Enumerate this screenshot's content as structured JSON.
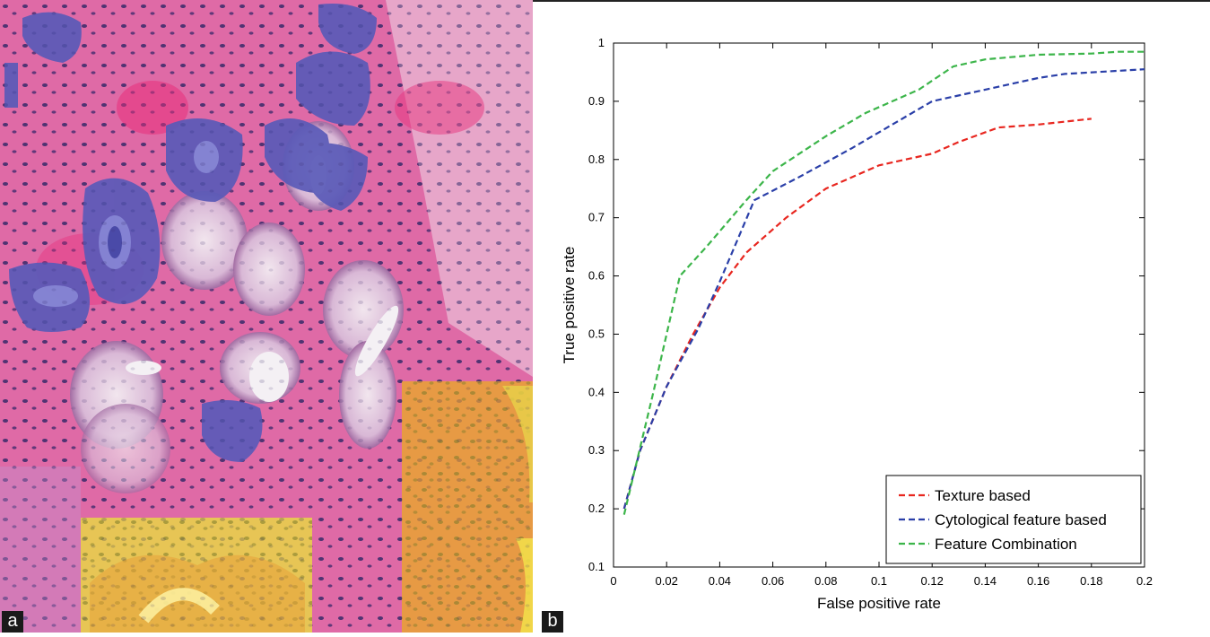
{
  "panels": {
    "a": {
      "label": "a"
    },
    "b": {
      "label": "b"
    }
  },
  "colors": {
    "tissue_pink": "#d95a9a",
    "nucleus_blue": "#5a5ab8",
    "highlight_yellow": "#e8d24a"
  },
  "chart_data": {
    "type": "line",
    "title": "",
    "xlabel": "False positive rate",
    "ylabel": "True positive rate",
    "xlim": [
      0,
      0.2
    ],
    "ylim": [
      0.1,
      1
    ],
    "xticks": [
      "0",
      "0.02",
      "0.04",
      "0.06",
      "0.08",
      "0.1",
      "0.12",
      "0.14",
      "0.16",
      "0.18",
      "0.2"
    ],
    "yticks": [
      "0.1",
      "0.2",
      "0.3",
      "0.4",
      "0.5",
      "0.6",
      "0.7",
      "0.8",
      "0.9",
      "1"
    ],
    "grid": false,
    "legend_position": "bottom-right",
    "series": [
      {
        "name": "Texture based",
        "color": "#e8261f",
        "points": [
          [
            0.004,
            0.2
          ],
          [
            0.01,
            0.3
          ],
          [
            0.02,
            0.41
          ],
          [
            0.03,
            0.5
          ],
          [
            0.04,
            0.58
          ],
          [
            0.05,
            0.64
          ],
          [
            0.065,
            0.7
          ],
          [
            0.08,
            0.75
          ],
          [
            0.1,
            0.79
          ],
          [
            0.12,
            0.81
          ],
          [
            0.13,
            0.83
          ],
          [
            0.145,
            0.855
          ],
          [
            0.16,
            0.86
          ],
          [
            0.18,
            0.87
          ]
        ]
      },
      {
        "name": "Cytological feature based",
        "color": "#2a3fa8",
        "points": [
          [
            0.004,
            0.2
          ],
          [
            0.01,
            0.3
          ],
          [
            0.02,
            0.41
          ],
          [
            0.032,
            0.51
          ],
          [
            0.04,
            0.59
          ],
          [
            0.053,
            0.73
          ],
          [
            0.07,
            0.77
          ],
          [
            0.09,
            0.82
          ],
          [
            0.105,
            0.86
          ],
          [
            0.12,
            0.9
          ],
          [
            0.14,
            0.92
          ],
          [
            0.16,
            0.94
          ],
          [
            0.17,
            0.947
          ],
          [
            0.2,
            0.955
          ]
        ]
      },
      {
        "name": "Feature Combination",
        "color": "#3cb54a",
        "points": [
          [
            0.004,
            0.19
          ],
          [
            0.015,
            0.4
          ],
          [
            0.025,
            0.6
          ],
          [
            0.035,
            0.65
          ],
          [
            0.05,
            0.73
          ],
          [
            0.06,
            0.78
          ],
          [
            0.08,
            0.84
          ],
          [
            0.095,
            0.88
          ],
          [
            0.115,
            0.92
          ],
          [
            0.128,
            0.96
          ],
          [
            0.14,
            0.972
          ],
          [
            0.16,
            0.98
          ],
          [
            0.18,
            0.982
          ],
          [
            0.19,
            0.985
          ],
          [
            0.2,
            0.985
          ]
        ]
      }
    ]
  }
}
